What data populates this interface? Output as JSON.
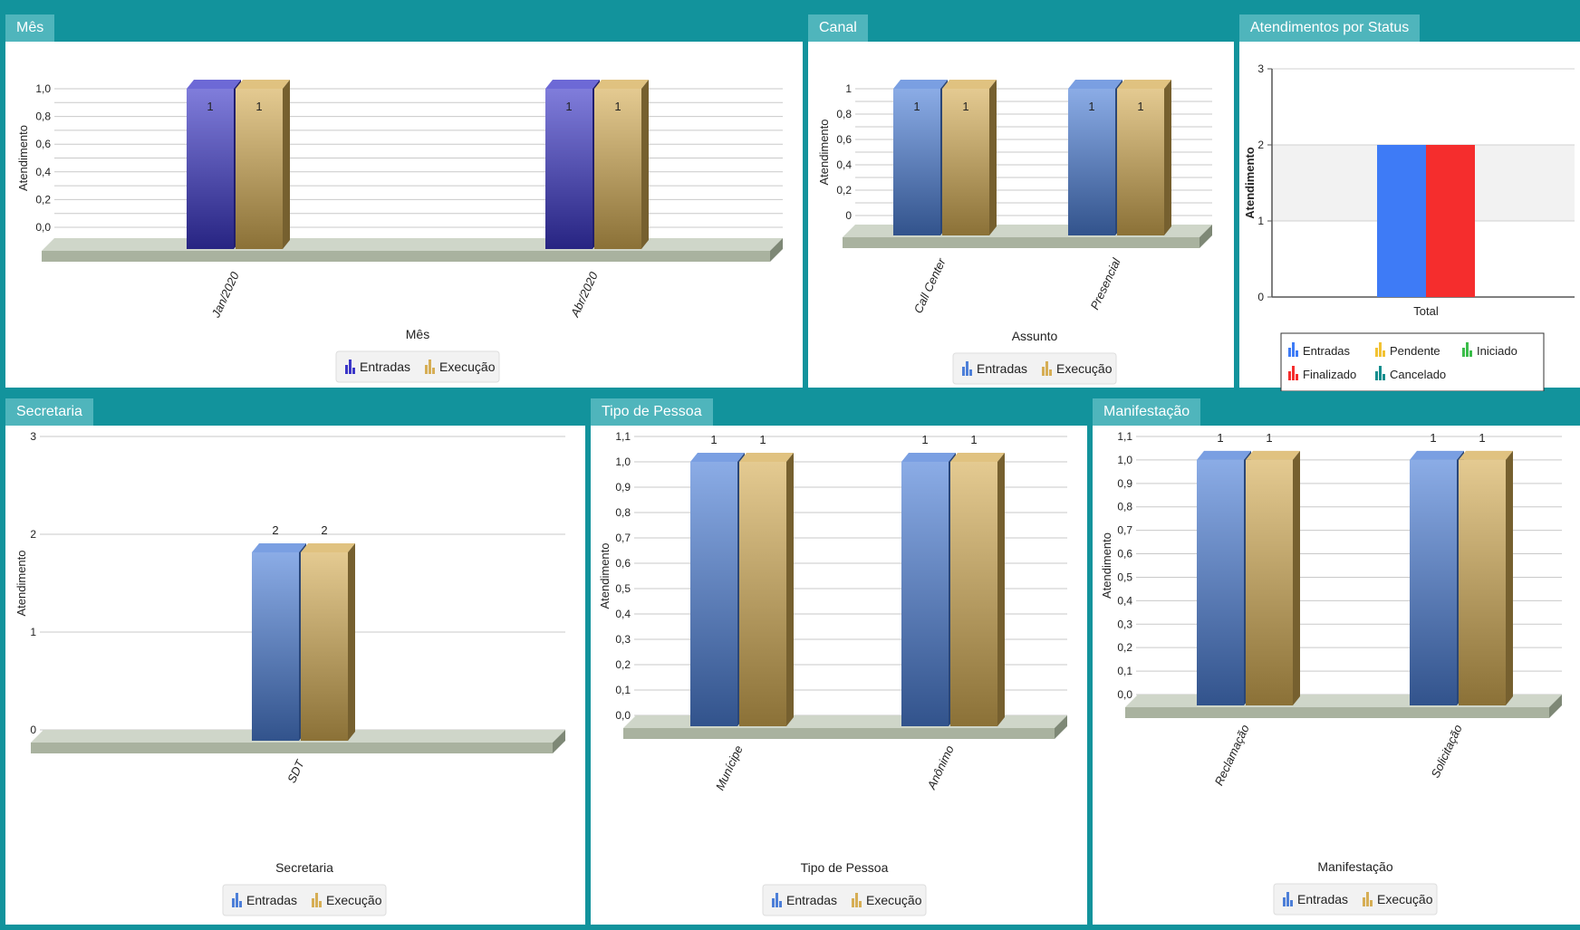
{
  "panels": {
    "mes": {
      "title": "Mês"
    },
    "canal": {
      "title": "Canal"
    },
    "status": {
      "title": "Atendimentos por Status"
    },
    "secretaria": {
      "title": "Secretaria"
    },
    "tipo_pessoa": {
      "title": "Tipo de Pessoa"
    },
    "manifestacao": {
      "title": "Manifestação"
    }
  },
  "chart_data": [
    {
      "id": "mes",
      "type": "bar",
      "categories": [
        "Jan/2020",
        "Abr/2020"
      ],
      "series": [
        {
          "name": "Entradas",
          "values": [
            1,
            1
          ],
          "color": "#3c37c8"
        },
        {
          "name": "Execução",
          "values": [
            1,
            1
          ],
          "color": "#d6ae55"
        }
      ],
      "xlabel": "Mês",
      "ylabel": "Atendimento",
      "ylim": [
        0,
        1.0
      ],
      "yticks": [
        "0,0",
        "0,2",
        "0,4",
        "0,6",
        "0,8",
        "1,0"
      ],
      "legend": "bottom-center",
      "grid": true
    },
    {
      "id": "canal",
      "type": "bar",
      "categories": [
        "Call Center",
        "Presencial"
      ],
      "series": [
        {
          "name": "Entradas",
          "values": [
            1,
            1
          ],
          "color": "#4d7fd8"
        },
        {
          "name": "Execução",
          "values": [
            1,
            1
          ],
          "color": "#d6ae55"
        }
      ],
      "xlabel": "Assunto",
      "ylabel": "Atendimento",
      "ylim": [
        0,
        1.0
      ],
      "yticks": [
        "0",
        "0,2",
        "0,4",
        "0,6",
        "0,8",
        "1"
      ],
      "legend": "bottom-center",
      "grid": true
    },
    {
      "id": "status",
      "type": "bar",
      "categories": [
        "Total"
      ],
      "series": [
        {
          "name": "Entradas",
          "values": [
            2
          ],
          "color": "#3e7bf6"
        },
        {
          "name": "Pendente",
          "values": [
            0
          ],
          "color": "#f2c232"
        },
        {
          "name": "Iniciado",
          "values": [
            0
          ],
          "color": "#3bbd4a"
        },
        {
          "name": "Finalizado",
          "values": [
            2
          ],
          "color": "#f52d2d"
        },
        {
          "name": "Cancelado",
          "values": [
            0
          ],
          "color": "#128d8d"
        }
      ],
      "ylabel": "Atendimento",
      "ylim": [
        0,
        3
      ],
      "yticks": [
        "0",
        "1",
        "2",
        "3"
      ],
      "legend": "bottom",
      "grid": true
    },
    {
      "id": "secretaria",
      "type": "bar",
      "categories": [
        "SDT"
      ],
      "series": [
        {
          "name": "Entradas",
          "values": [
            2
          ],
          "color": "#4d7fd8"
        },
        {
          "name": "Execução",
          "values": [
            2
          ],
          "color": "#d6ae55"
        }
      ],
      "xlabel": "Secretaria",
      "ylabel": "Atendimento",
      "ylim": [
        0,
        3
      ],
      "yticks": [
        "0",
        "1",
        "2",
        "3"
      ],
      "legend": "bottom-center",
      "grid": true
    },
    {
      "id": "tipo_pessoa",
      "type": "bar",
      "categories": [
        "Munícipe",
        "Anônimo"
      ],
      "series": [
        {
          "name": "Entradas",
          "values": [
            1,
            1
          ],
          "color": "#4d7fd8"
        },
        {
          "name": "Execução",
          "values": [
            1,
            1
          ],
          "color": "#d6ae55"
        }
      ],
      "xlabel": "Tipo de Pessoa",
      "ylabel": "Atendimento",
      "ylim": [
        0,
        1.1
      ],
      "yticks": [
        "0,0",
        "0,1",
        "0,2",
        "0,3",
        "0,4",
        "0,5",
        "0,6",
        "0,7",
        "0,8",
        "0,9",
        "1,0",
        "1,1"
      ],
      "legend": "bottom-center",
      "grid": true
    },
    {
      "id": "manifestacao",
      "type": "bar",
      "categories": [
        "Reclamação",
        "Solicitação"
      ],
      "series": [
        {
          "name": "Entradas",
          "values": [
            1,
            1
          ],
          "color": "#4d7fd8"
        },
        {
          "name": "Execução",
          "values": [
            1,
            1
          ],
          "color": "#d6ae55"
        }
      ],
      "xlabel": "Manifestação",
      "ylabel": "Atendimento",
      "ylim": [
        0,
        1.1
      ],
      "yticks": [
        "0,0",
        "0,1",
        "0,2",
        "0,3",
        "0,4",
        "0,5",
        "0,6",
        "0,7",
        "0,8",
        "0,9",
        "1,0",
        "1,1"
      ],
      "legend": "bottom-center",
      "grid": true
    }
  ]
}
